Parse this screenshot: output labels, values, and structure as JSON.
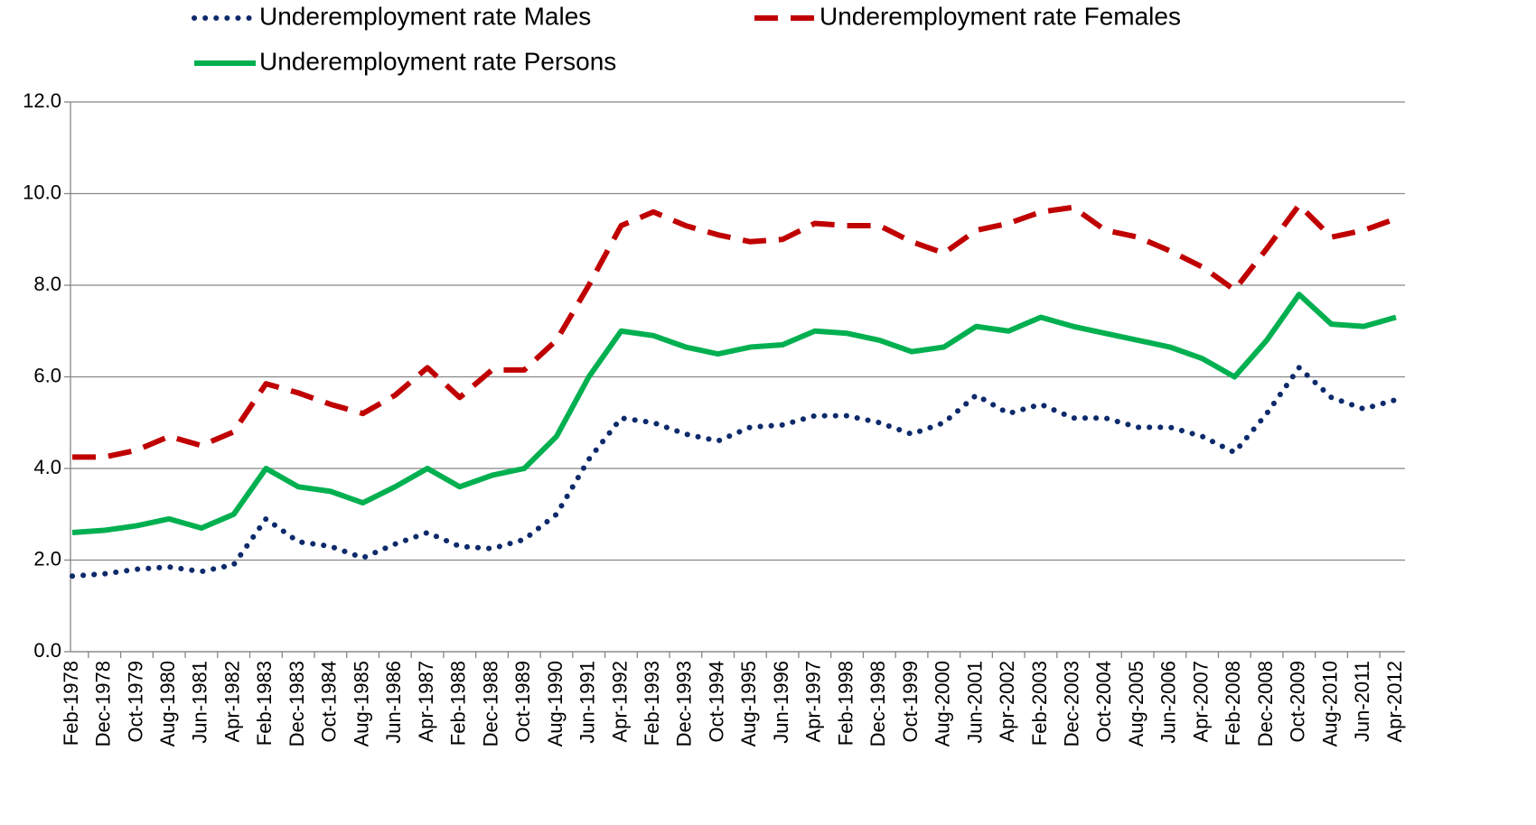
{
  "chart_data": {
    "type": "line",
    "categories": [
      "Feb-1978",
      "Dec-1978",
      "Oct-1979",
      "Aug-1980",
      "Jun-1981",
      "Apr-1982",
      "Feb-1983",
      "Dec-1983",
      "Oct-1984",
      "Aug-1985",
      "Jun-1986",
      "Apr-1987",
      "Feb-1988",
      "Dec-1988",
      "Oct-1989",
      "Aug-1990",
      "Jun-1991",
      "Apr-1992",
      "Feb-1993",
      "Dec-1993",
      "Oct-1994",
      "Aug-1995",
      "Jun-1996",
      "Apr-1997",
      "Feb-1998",
      "Dec-1998",
      "Oct-1999",
      "Aug-2000",
      "Jun-2001",
      "Apr-2002",
      "Feb-2003",
      "Dec-2003",
      "Oct-2004",
      "Aug-2005",
      "Jun-2006",
      "Apr-2007",
      "Feb-2008",
      "Dec-2008",
      "Oct-2009",
      "Aug-2010",
      "Jun-2011",
      "Apr-2012"
    ],
    "series": [
      {
        "name": "Underemployment rate  Males",
        "color": "#0d2a6b",
        "style": "dotted",
        "values": [
          1.65,
          1.7,
          1.8,
          1.85,
          1.75,
          1.9,
          2.9,
          2.4,
          2.3,
          2.05,
          2.35,
          2.6,
          2.3,
          2.25,
          2.45,
          3.0,
          4.2,
          5.1,
          5.0,
          4.75,
          4.6,
          4.9,
          4.95,
          5.15,
          5.15,
          5.0,
          4.75,
          5.0,
          5.6,
          5.2,
          5.4,
          5.1,
          5.1,
          4.9,
          4.9,
          4.7,
          4.35,
          5.2,
          6.2,
          5.55,
          5.3,
          5.5
        ]
      },
      {
        "name": "Underemployment rate Females",
        "color": "#c00000",
        "style": "dashed",
        "values": [
          4.25,
          4.25,
          4.4,
          4.7,
          4.5,
          4.8,
          5.85,
          5.65,
          5.4,
          5.2,
          5.6,
          6.2,
          5.55,
          6.15,
          6.15,
          6.8,
          8.0,
          9.3,
          9.6,
          9.3,
          9.1,
          8.95,
          9.0,
          9.35,
          9.3,
          9.3,
          8.95,
          8.7,
          9.2,
          9.35,
          9.6,
          9.7,
          9.2,
          9.05,
          8.75,
          8.4,
          7.9,
          8.8,
          9.75,
          9.05,
          9.2,
          9.45
        ]
      },
      {
        "name": "Underemployment rate Persons",
        "color": "#00b050",
        "style": "solid",
        "values": [
          2.6,
          2.65,
          2.75,
          2.9,
          2.7,
          3.0,
          4.0,
          3.6,
          3.5,
          3.25,
          3.6,
          4.0,
          3.6,
          3.85,
          4.0,
          4.7,
          6.0,
          7.0,
          6.9,
          6.65,
          6.5,
          6.65,
          6.7,
          7.0,
          6.95,
          6.8,
          6.55,
          6.65,
          7.1,
          7.0,
          7.3,
          7.1,
          6.95,
          6.8,
          6.65,
          6.4,
          6.0,
          6.8,
          7.8,
          7.15,
          7.1,
          7.3
        ]
      }
    ],
    "ylim": [
      0,
      12
    ],
    "yticks": [
      {
        "value": 0,
        "label": "0.0"
      },
      {
        "value": 2,
        "label": "2.0"
      },
      {
        "value": 4,
        "label": "4.0"
      },
      {
        "value": 6,
        "label": "6.0"
      },
      {
        "value": 8,
        "label": "8.0"
      },
      {
        "value": 10,
        "label": "10.0"
      },
      {
        "value": 12,
        "label": "12.0"
      }
    ],
    "grid": true
  }
}
